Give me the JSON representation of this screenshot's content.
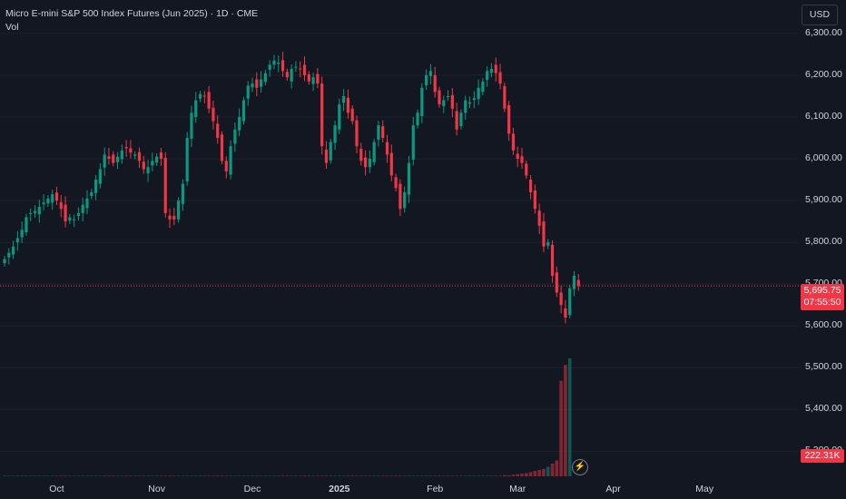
{
  "legend": {
    "title": "Micro E-mini S&P 500 Index Futures (Jun 2025) · 1D · CME",
    "volume_label": "Vol"
  },
  "currency_button": "USD",
  "last_price": {
    "value": "5,695.75",
    "countdown": "07:55:50"
  },
  "volume_last": "222.31K",
  "colors": {
    "up": "#089981",
    "down": "#f23645",
    "background": "#131722",
    "grid": "#1e222d"
  },
  "icons": {
    "bolt": "lightning-icon"
  },
  "chart_data": {
    "type": "candlestick",
    "title": "Micro E-mini S&P 500 Index Futures (Jun 2025) · 1D · CME",
    "ylim": [
      5240,
      6380
    ],
    "y_ticks": [
      "6,300.00",
      "6,200.00",
      "6,100.00",
      "6,000.00",
      "5,900.00",
      "5,800.00",
      "5,700.00",
      "5,600.00",
      "5,500.00",
      "5,400.00",
      "5,300.00"
    ],
    "x_ticks": [
      "Oct",
      "Nov",
      "Dec",
      "2025",
      "Feb",
      "Mar",
      "Apr",
      "May"
    ],
    "series": [
      {
        "name": "price",
        "closes": [
          5760,
          5775,
          5790,
          5810,
          5830,
          5860,
          5870,
          5875,
          5885,
          5895,
          5905,
          5915,
          5900,
          5880,
          5850,
          5860,
          5855,
          5870,
          5890,
          5905,
          5920,
          5950,
          5975,
          6010,
          6000,
          5990,
          6005,
          6020,
          6025,
          6015,
          6010,
          5995,
          5975,
          5980,
          5995,
          6005,
          6000,
          5870,
          5855,
          5855,
          5900,
          5940,
          6050,
          6110,
          6140,
          6155,
          6150,
          6120,
          6090,
          6050,
          5995,
          5970,
          6030,
          6070,
          6100,
          6140,
          6175,
          6180,
          6170,
          6190,
          6205,
          6225,
          6235,
          6230,
          6210,
          6195,
          6215,
          6220,
          6215,
          6200,
          6185,
          6195,
          6180,
          6030,
          5990,
          6040,
          6080,
          6130,
          6150,
          6110,
          6090,
          6030,
          5995,
          5980,
          6000,
          6040,
          6080,
          6050,
          6010,
          5960,
          5930,
          5880,
          5920,
          5990,
          6080,
          6110,
          6170,
          6200,
          6210,
          6160,
          6130,
          6140,
          6150,
          6120,
          6070,
          6110,
          6140,
          6135,
          6145,
          6170,
          6185,
          6210,
          6215,
          6205,
          6180,
          6120,
          6060,
          6020,
          6000,
          5990,
          5960,
          5920,
          5880,
          5840,
          5790,
          5800,
          5720,
          5680,
          5650,
          5620,
          5690,
          5720,
          5695
        ]
      },
      {
        "name": "volume",
        "values": [
          1,
          1,
          1,
          1,
          1,
          1,
          1,
          1,
          1,
          1,
          1,
          1,
          1,
          1,
          1,
          1,
          1,
          1,
          1,
          1,
          1,
          1,
          1,
          1,
          1,
          1,
          1,
          1,
          1,
          1,
          1,
          1,
          1,
          1,
          1,
          1,
          1,
          1,
          1,
          1,
          1,
          1,
          1,
          1,
          1,
          1,
          1,
          1,
          1,
          1,
          1,
          1,
          1,
          1,
          1,
          1,
          1,
          1,
          1,
          1,
          1,
          1,
          1,
          1,
          1,
          1,
          1,
          1,
          1,
          1,
          1,
          1,
          1,
          1,
          1,
          1,
          1,
          1,
          1,
          1,
          1,
          1,
          1,
          1,
          1,
          1,
          1,
          1,
          1,
          1,
          1,
          1,
          1,
          1,
          1,
          1,
          1,
          1,
          1,
          1,
          1,
          1,
          1,
          1,
          1,
          1,
          1,
          1,
          1,
          1,
          1,
          1,
          1,
          1,
          1,
          2,
          2,
          3,
          4,
          5,
          6,
          8,
          10,
          12,
          14,
          18,
          24,
          30,
          180,
          210,
          222.31
        ]
      }
    ]
  }
}
